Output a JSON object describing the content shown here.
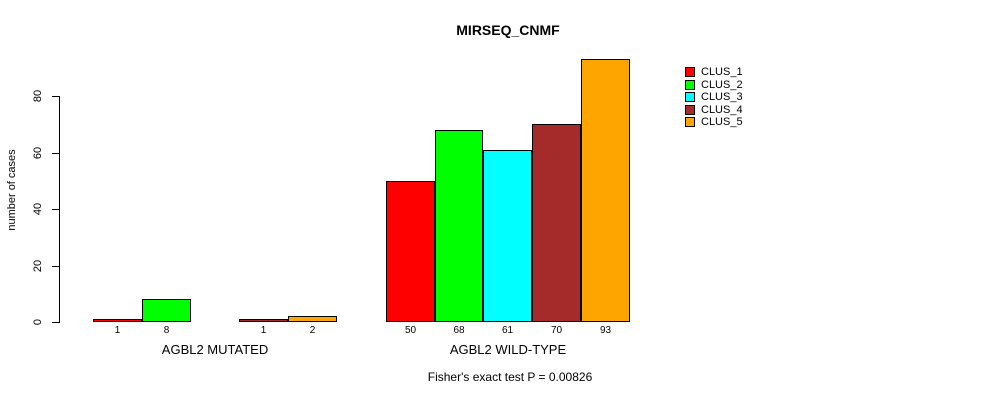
{
  "chart_data": {
    "type": "bar",
    "title": "MIRSEQ_CNMF",
    "ylabel": "number of cases",
    "xlabel": "",
    "yticks": [
      0,
      20,
      40,
      60,
      80
    ],
    "ylim": [
      0,
      93
    ],
    "grid": false,
    "legend_position": "top-right",
    "categories": [
      "AGBL2 MUTATED",
      "AGBL2 WILD-TYPE"
    ],
    "series": [
      {
        "name": "CLUS_1",
        "color": "#FF0000",
        "values": [
          1,
          50
        ]
      },
      {
        "name": "CLUS_2",
        "color": "#00FF00",
        "values": [
          8,
          68
        ]
      },
      {
        "name": "CLUS_3",
        "color": "#00FFFF",
        "values": [
          0,
          61
        ]
      },
      {
        "name": "CLUS_4",
        "color": "#A52A2A",
        "values": [
          1,
          70
        ]
      },
      {
        "name": "CLUS_5",
        "color": "#FFA500",
        "values": [
          2,
          93
        ]
      }
    ],
    "bar_value_labels": [
      [
        "1",
        "8",
        "",
        "1",
        "2"
      ],
      [
        "50",
        "68",
        "61",
        "70",
        "93"
      ]
    ],
    "footnote": "Fisher's exact test P = 0.00826",
    "axis_color": "#000000",
    "background_color": "#FFFFFF"
  }
}
